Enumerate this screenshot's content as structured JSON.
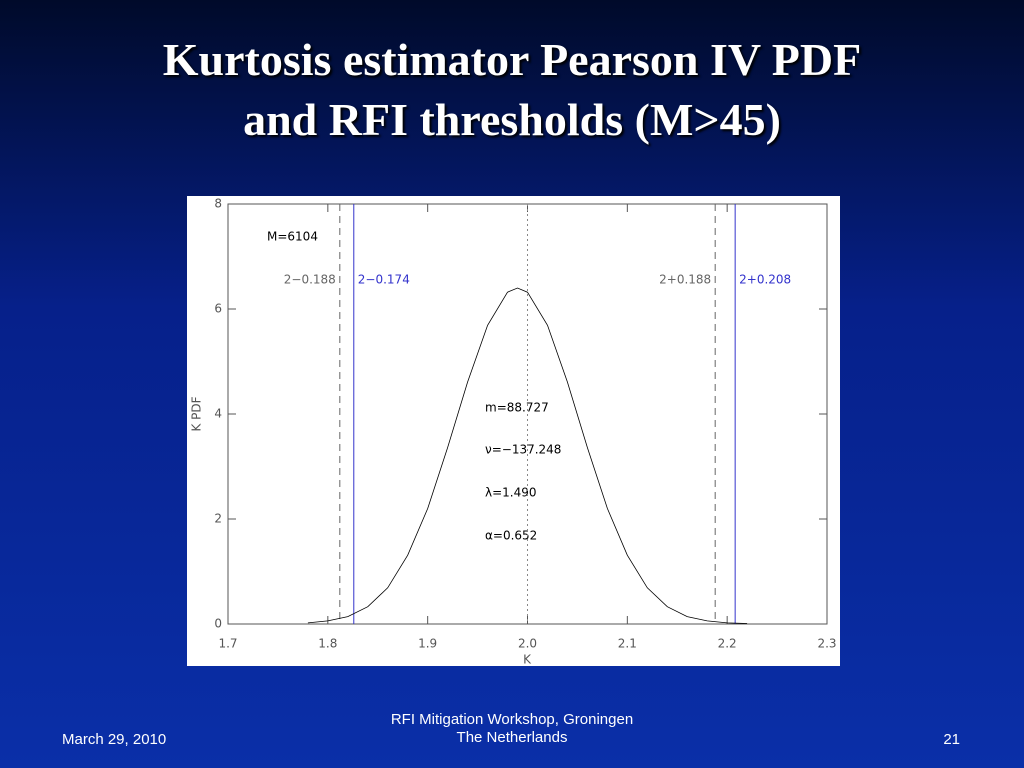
{
  "slide": {
    "title_lines": [
      "Kurtosis estimator Pearson IV PDF",
      "and RFI thresholds (M>45)"
    ],
    "footer": {
      "date": "March 29, 2010",
      "center_lines": [
        "RFI Mitigation Workshop, Groningen",
        "The Netherlands"
      ],
      "page": "21"
    }
  },
  "chart_data": {
    "type": "line",
    "xlabel": "K",
    "ylabel": "K  PDF",
    "color": "#000000",
    "x": [
      1.78,
      1.8,
      1.82,
      1.84,
      1.86,
      1.88,
      1.9,
      1.92,
      1.94,
      1.96,
      1.98,
      1.99,
      2.0,
      2.02,
      2.04,
      2.06,
      2.08,
      2.1,
      2.12,
      2.14,
      2.16,
      2.18,
      2.2,
      2.22
    ],
    "values": [
      0.02,
      0.06,
      0.14,
      0.33,
      0.69,
      1.31,
      2.2,
      3.36,
      4.61,
      5.69,
      6.32,
      6.4,
      6.32,
      5.69,
      4.61,
      3.36,
      2.2,
      1.31,
      0.69,
      0.33,
      0.14,
      0.06,
      0.02,
      0.01
    ],
    "xlim": [
      1.7,
      2.3
    ],
    "ylim": [
      0,
      8
    ],
    "xticks": [
      1.7,
      1.8,
      1.9,
      {
        "value": 2,
        "label": "2.0"
      },
      2.1,
      2.2,
      2.3
    ],
    "yticks": [
      0,
      2,
      4,
      6,
      8
    ],
    "vlines": [
      {
        "x": 1.812,
        "label": "2−0.188",
        "style": "dashed",
        "color": "#666666"
      },
      {
        "x": 1.826,
        "label": "2−0.174",
        "style": "solid",
        "color": "#3333cc"
      },
      {
        "x": 2.0,
        "style": "dotted",
        "color": "#888888"
      },
      {
        "x": 2.188,
        "label": "2+0.188",
        "style": "dashed",
        "color": "#666666"
      },
      {
        "x": 2.208,
        "label": "2+0.208",
        "style": "solid",
        "color": "#3333cc"
      }
    ],
    "annotations": [
      "M=6104",
      "m=88.727",
      "ν=−137.248",
      "λ=1.490",
      "α=0.652"
    ]
  }
}
